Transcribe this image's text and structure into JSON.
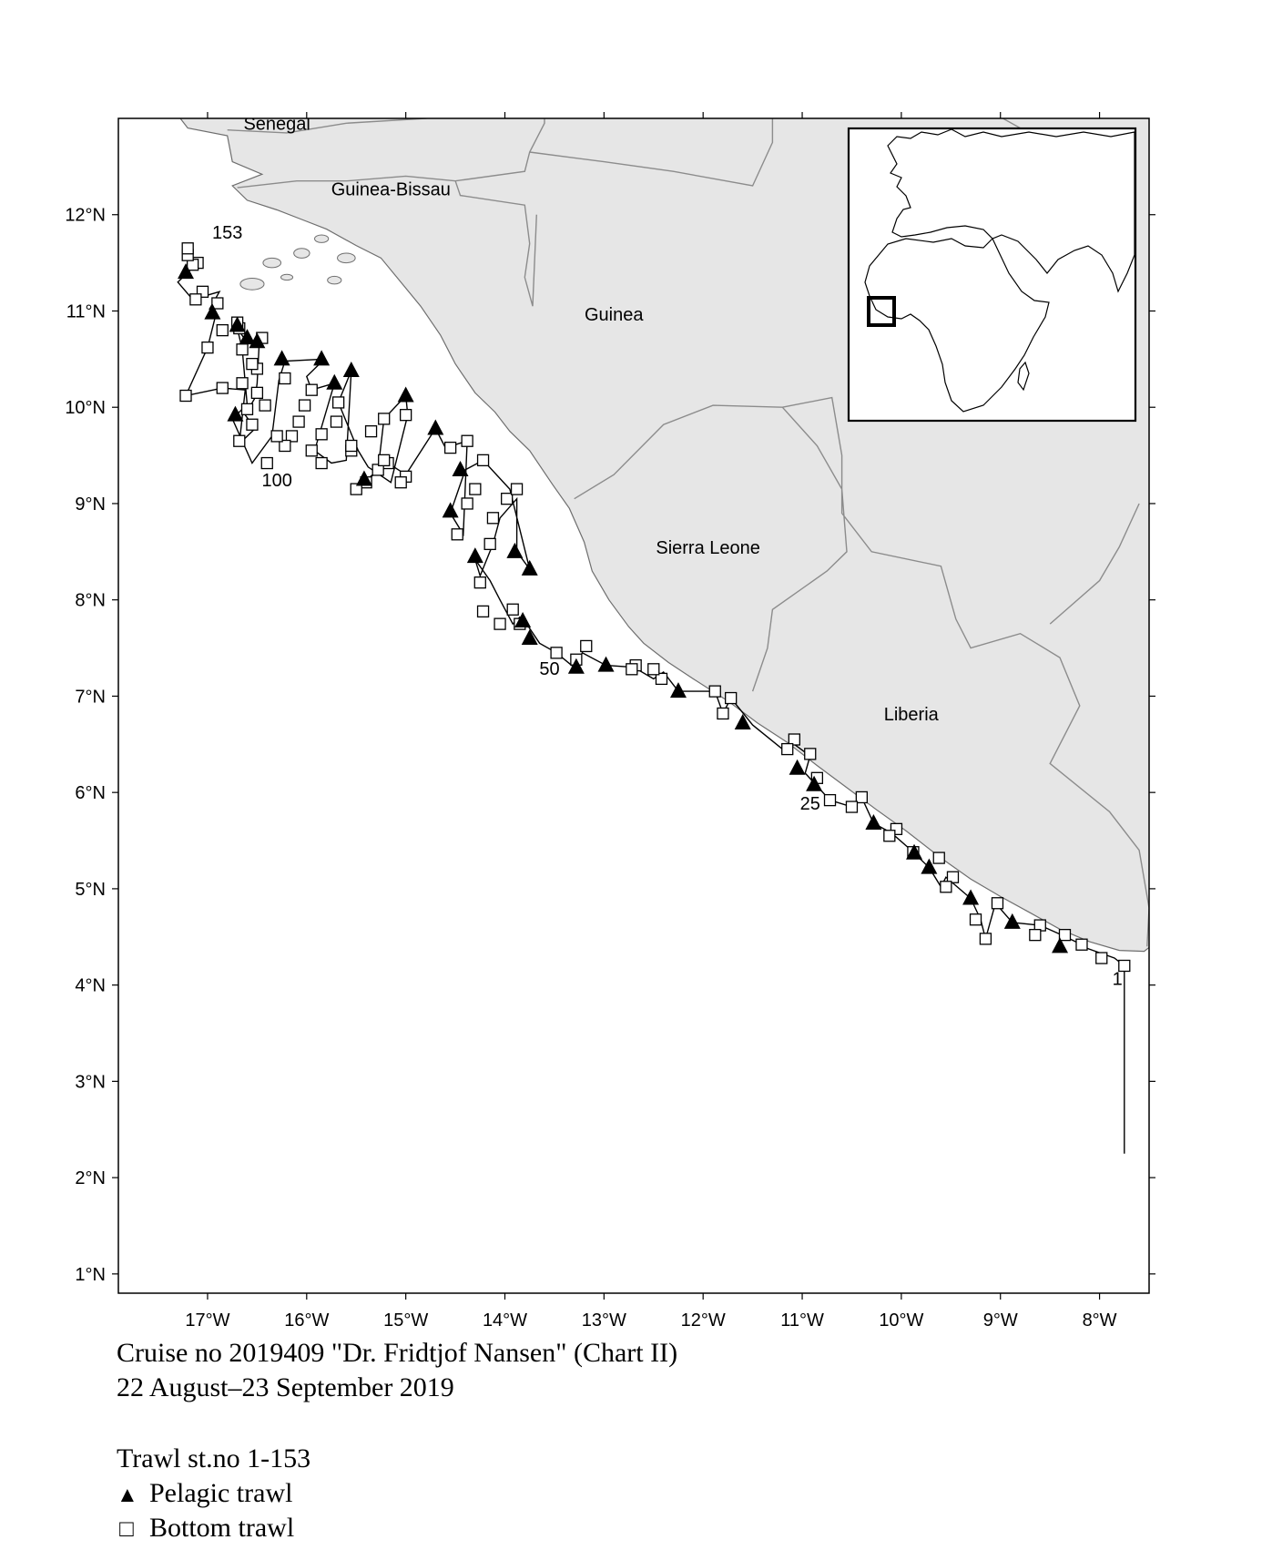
{
  "map": {
    "lon_range": [
      -17.9,
      -7.5
    ],
    "lat_range": [
      0.8,
      13.0
    ],
    "x_ticks": [
      {
        "value": -17,
        "label": "17°W"
      },
      {
        "value": -16,
        "label": "16°W"
      },
      {
        "value": -15,
        "label": "15°W"
      },
      {
        "value": -14,
        "label": "14°W"
      },
      {
        "value": -13,
        "label": "13°W"
      },
      {
        "value": -12,
        "label": "12°W"
      },
      {
        "value": -11,
        "label": "11°W"
      },
      {
        "value": -10,
        "label": "10°W"
      },
      {
        "value": -9,
        "label": "9°W"
      },
      {
        "value": -8,
        "label": "8°W"
      }
    ],
    "y_ticks": [
      {
        "value": 12,
        "label": "12°N"
      },
      {
        "value": 11,
        "label": "11°N"
      },
      {
        "value": 10,
        "label": "10°N"
      },
      {
        "value": 9,
        "label": "9°N"
      },
      {
        "value": 8,
        "label": "8°N"
      },
      {
        "value": 7,
        "label": "7°N"
      },
      {
        "value": 6,
        "label": "6°N"
      },
      {
        "value": 5,
        "label": "5°N"
      },
      {
        "value": 4,
        "label": "4°N"
      },
      {
        "value": 3,
        "label": "3°N"
      },
      {
        "value": 2,
        "label": "2°N"
      },
      {
        "value": 1,
        "label": "1°N"
      }
    ],
    "countries": [
      {
        "name": "Senegal",
        "lon": -16.3,
        "lat": 12.88
      },
      {
        "name": "Guinea-Bissau",
        "lon": -15.15,
        "lat": 12.2
      },
      {
        "name": "Guinea",
        "lon": -12.9,
        "lat": 10.9
      },
      {
        "name": "Sierra Leone",
        "lon": -11.95,
        "lat": 8.48
      },
      {
        "name": "Liberia",
        "lon": -9.9,
        "lat": 6.75
      }
    ],
    "station_labels": [
      {
        "text": "1",
        "lon": -7.82,
        "lat": 4.0
      },
      {
        "text": "25",
        "lon": -10.92,
        "lat": 5.82
      },
      {
        "text": "50",
        "lon": -13.55,
        "lat": 7.22
      },
      {
        "text": "100",
        "lon": -16.3,
        "lat": 9.18
      },
      {
        "text": "153",
        "lon": -16.8,
        "lat": 11.75
      }
    ],
    "colors": {
      "land": "#e6e6e6",
      "border": "#8c8c8c",
      "track": "#000000",
      "marker": "#000000"
    },
    "inset": {
      "label": "locator-map",
      "highlight": "West Africa study area"
    },
    "track": [
      [
        -7.75,
        2.25
      ],
      [
        -7.75,
        4.2
      ],
      [
        -7.85,
        4.28
      ],
      [
        -8.12,
        4.38
      ],
      [
        -8.18,
        4.42
      ],
      [
        -8.38,
        4.52
      ],
      [
        -8.6,
        4.62
      ],
      [
        -8.88,
        4.65
      ],
      [
        -9.05,
        4.85
      ],
      [
        -9.15,
        4.48
      ],
      [
        -9.2,
        4.68
      ],
      [
        -9.3,
        4.9
      ],
      [
        -9.55,
        5.12
      ],
      [
        -9.6,
        5.02
      ],
      [
        -9.72,
        5.22
      ],
      [
        -9.85,
        5.35
      ],
      [
        -9.9,
        5.4
      ],
      [
        -10.1,
        5.58
      ],
      [
        -10.28,
        5.68
      ],
      [
        -10.4,
        5.95
      ],
      [
        -10.5,
        5.85
      ],
      [
        -10.72,
        5.92
      ],
      [
        -10.88,
        6.1
      ],
      [
        -10.97,
        6.2
      ],
      [
        -10.92,
        6.38
      ],
      [
        -11.08,
        6.5
      ],
      [
        -11.2,
        6.45
      ],
      [
        -11.5,
        6.7
      ],
      [
        -11.72,
        6.98
      ],
      [
        -11.8,
        6.82
      ],
      [
        -11.88,
        7.05
      ],
      [
        -12.25,
        7.05
      ],
      [
        -12.4,
        7.25
      ],
      [
        -12.5,
        7.18
      ],
      [
        -12.7,
        7.3
      ],
      [
        -12.98,
        7.32
      ],
      [
        -13.22,
        7.45
      ],
      [
        -13.28,
        7.28
      ],
      [
        -13.48,
        7.45
      ],
      [
        -13.65,
        7.55
      ],
      [
        -13.78,
        7.75
      ],
      [
        -13.85,
        7.82
      ],
      [
        -13.92,
        7.75
      ],
      [
        -14.05,
        8.0
      ],
      [
        -14.15,
        8.2
      ],
      [
        -14.3,
        8.42
      ],
      [
        -14.25,
        8.25
      ],
      [
        -14.12,
        8.58
      ],
      [
        -14.05,
        8.85
      ],
      [
        -13.88,
        9.05
      ],
      [
        -13.88,
        8.5
      ],
      [
        -13.75,
        8.32
      ],
      [
        -13.95,
        9.15
      ],
      [
        -14.22,
        9.45
      ],
      [
        -14.4,
        9.35
      ],
      [
        -14.55,
        8.9
      ],
      [
        -14.42,
        8.68
      ],
      [
        -14.38,
        9.65
      ],
      [
        -14.6,
        9.58
      ],
      [
        -14.7,
        9.78
      ],
      [
        -15.0,
        9.3
      ],
      [
        -15.18,
        9.42
      ],
      [
        -15.42,
        9.22
      ],
      [
        -15.5,
        9.15
      ],
      [
        -15.28,
        9.35
      ],
      [
        -15.22,
        9.88
      ],
      [
        -15.0,
        10.12
      ],
      [
        -14.98,
        9.92
      ],
      [
        -15.15,
        9.22
      ],
      [
        -15.38,
        9.38
      ],
      [
        -15.48,
        9.55
      ],
      [
        -15.68,
        10.05
      ],
      [
        -15.55,
        10.38
      ],
      [
        -15.6,
        9.45
      ],
      [
        -15.75,
        9.42
      ],
      [
        -15.92,
        9.55
      ],
      [
        -15.72,
        10.25
      ],
      [
        -15.95,
        10.18
      ],
      [
        -16.0,
        10.32
      ],
      [
        -15.82,
        10.5
      ],
      [
        -16.22,
        10.48
      ],
      [
        -16.28,
        10.28
      ],
      [
        -16.35,
        9.7
      ],
      [
        -16.55,
        9.42
      ],
      [
        -16.75,
        9.88
      ],
      [
        -16.65,
        9.98
      ],
      [
        -16.6,
        10.02
      ],
      [
        -16.65,
        10.6
      ],
      [
        -16.7,
        10.82
      ],
      [
        -16.62,
        10.7
      ],
      [
        -16.48,
        10.65
      ],
      [
        -16.5,
        10.25
      ],
      [
        -16.52,
        10.1
      ],
      [
        -16.62,
        9.92
      ],
      [
        -16.52,
        9.78
      ],
      [
        -16.68,
        9.62
      ],
      [
        -16.62,
        10.18
      ],
      [
        -16.85,
        10.2
      ],
      [
        -17.22,
        10.12
      ],
      [
        -17.0,
        10.62
      ],
      [
        -16.92,
        10.95
      ],
      [
        -16.98,
        11.02
      ],
      [
        -16.88,
        11.2
      ],
      [
        -17.15,
        11.12
      ],
      [
        -17.3,
        11.3
      ],
      [
        -17.12,
        11.48
      ],
      [
        -17.2,
        11.58
      ],
      [
        -17.2,
        11.65
      ]
    ],
    "stations_pelagic": [
      [
        -8.4,
        4.4
      ],
      [
        -8.88,
        4.65
      ],
      [
        -9.3,
        4.9
      ],
      [
        -9.72,
        5.22
      ],
      [
        -9.87,
        5.37
      ],
      [
        -10.28,
        5.68
      ],
      [
        -10.88,
        6.08
      ],
      [
        -11.05,
        6.25
      ],
      [
        -11.6,
        6.72
      ],
      [
        -12.25,
        7.05
      ],
      [
        -12.98,
        7.32
      ],
      [
        -13.28,
        7.3
      ],
      [
        -13.75,
        7.6
      ],
      [
        -13.82,
        7.78
      ],
      [
        -13.75,
        8.32
      ],
      [
        -13.9,
        8.5
      ],
      [
        -14.3,
        8.45
      ],
      [
        -14.55,
        8.92
      ],
      [
        -14.45,
        9.35
      ],
      [
        -14.7,
        9.78
      ],
      [
        -15.42,
        9.25
      ],
      [
        -15.0,
        10.12
      ],
      [
        -15.55,
        10.38
      ],
      [
        -15.72,
        10.25
      ],
      [
        -15.85,
        10.5
      ],
      [
        -16.25,
        10.5
      ],
      [
        -16.72,
        9.92
      ],
      [
        -16.5,
        10.68
      ],
      [
        -16.6,
        10.72
      ],
      [
        -16.7,
        10.85
      ],
      [
        -16.95,
        10.98
      ],
      [
        -17.22,
        11.4
      ]
    ],
    "stations_bottom": [
      [
        -7.75,
        4.2
      ],
      [
        -7.98,
        4.28
      ],
      [
        -8.18,
        4.42
      ],
      [
        -8.35,
        4.52
      ],
      [
        -8.6,
        4.62
      ],
      [
        -8.65,
        4.52
      ],
      [
        -9.03,
        4.85
      ],
      [
        -9.15,
        4.48
      ],
      [
        -9.25,
        4.68
      ],
      [
        -9.48,
        5.12
      ],
      [
        -9.55,
        5.02
      ],
      [
        -9.62,
        5.32
      ],
      [
        -9.88,
        5.38
      ],
      [
        -10.05,
        5.62
      ],
      [
        -10.12,
        5.55
      ],
      [
        -10.4,
        5.95
      ],
      [
        -10.5,
        5.85
      ],
      [
        -10.72,
        5.92
      ],
      [
        -10.85,
        6.15
      ],
      [
        -10.92,
        6.4
      ],
      [
        -11.08,
        6.55
      ],
      [
        -11.15,
        6.45
      ],
      [
        -11.72,
        6.98
      ],
      [
        -11.8,
        6.82
      ],
      [
        -11.88,
        7.05
      ],
      [
        -12.42,
        7.18
      ],
      [
        -12.5,
        7.28
      ],
      [
        -12.68,
        7.32
      ],
      [
        -12.72,
        7.28
      ],
      [
        -13.28,
        7.38
      ],
      [
        -13.48,
        7.45
      ],
      [
        -13.18,
        7.52
      ],
      [
        -13.85,
        7.75
      ],
      [
        -13.92,
        7.9
      ],
      [
        -14.05,
        7.75
      ],
      [
        -14.22,
        7.88
      ],
      [
        -14.25,
        8.18
      ],
      [
        -14.15,
        8.58
      ],
      [
        -14.12,
        8.85
      ],
      [
        -13.98,
        9.05
      ],
      [
        -13.88,
        9.15
      ],
      [
        -14.22,
        9.45
      ],
      [
        -14.3,
        9.15
      ],
      [
        -14.38,
        9.0
      ],
      [
        -14.48,
        8.68
      ],
      [
        -14.38,
        9.65
      ],
      [
        -14.55,
        9.58
      ],
      [
        -15.0,
        9.28
      ],
      [
        -15.05,
        9.22
      ],
      [
        -15.18,
        9.42
      ],
      [
        -15.4,
        9.22
      ],
      [
        -15.5,
        9.15
      ],
      [
        -15.28,
        9.35
      ],
      [
        -15.22,
        9.45
      ],
      [
        -15.55,
        9.55
      ],
      [
        -15.68,
        10.05
      ],
      [
        -15.85,
        9.42
      ],
      [
        -15.95,
        9.55
      ],
      [
        -15.85,
        9.72
      ],
      [
        -15.7,
        9.85
      ],
      [
        -15.0,
        9.92
      ],
      [
        -15.22,
        9.88
      ],
      [
        -15.35,
        9.75
      ],
      [
        -15.55,
        9.6
      ],
      [
        -15.95,
        10.18
      ],
      [
        -16.02,
        10.02
      ],
      [
        -16.08,
        9.85
      ],
      [
        -16.15,
        9.7
      ],
      [
        -16.22,
        9.6
      ],
      [
        -16.4,
        9.42
      ],
      [
        -16.42,
        10.02
      ],
      [
        -16.5,
        10.15
      ],
      [
        -16.3,
        9.7
      ],
      [
        -16.22,
        10.3
      ],
      [
        -16.55,
        9.82
      ],
      [
        -16.6,
        9.98
      ],
      [
        -16.68,
        9.65
      ],
      [
        -16.65,
        10.25
      ],
      [
        -16.85,
        10.2
      ],
      [
        -17.22,
        10.12
      ],
      [
        -16.5,
        10.4
      ],
      [
        -16.55,
        10.45
      ],
      [
        -16.65,
        10.6
      ],
      [
        -16.45,
        10.72
      ],
      [
        -16.68,
        10.82
      ],
      [
        -16.7,
        10.88
      ],
      [
        -17.0,
        10.62
      ],
      [
        -16.85,
        10.8
      ],
      [
        -17.05,
        11.2
      ],
      [
        -16.9,
        11.08
      ],
      [
        -17.12,
        11.12
      ],
      [
        -17.1,
        11.5
      ],
      [
        -17.15,
        11.48
      ],
      [
        -17.2,
        11.58
      ],
      [
        -17.2,
        11.65
      ]
    ]
  },
  "caption": {
    "line1": "Cruise no 2019409  \"Dr. Fridtjof Nansen\" (Chart II)",
    "line2": "22 August–23 September 2019"
  },
  "legend": {
    "title": "Trawl st.no 1-153",
    "pelagic_symbol": "▲",
    "pelagic_label": "Pelagic trawl",
    "bottom_symbol": "□",
    "bottom_label": "Bottom trawl"
  }
}
